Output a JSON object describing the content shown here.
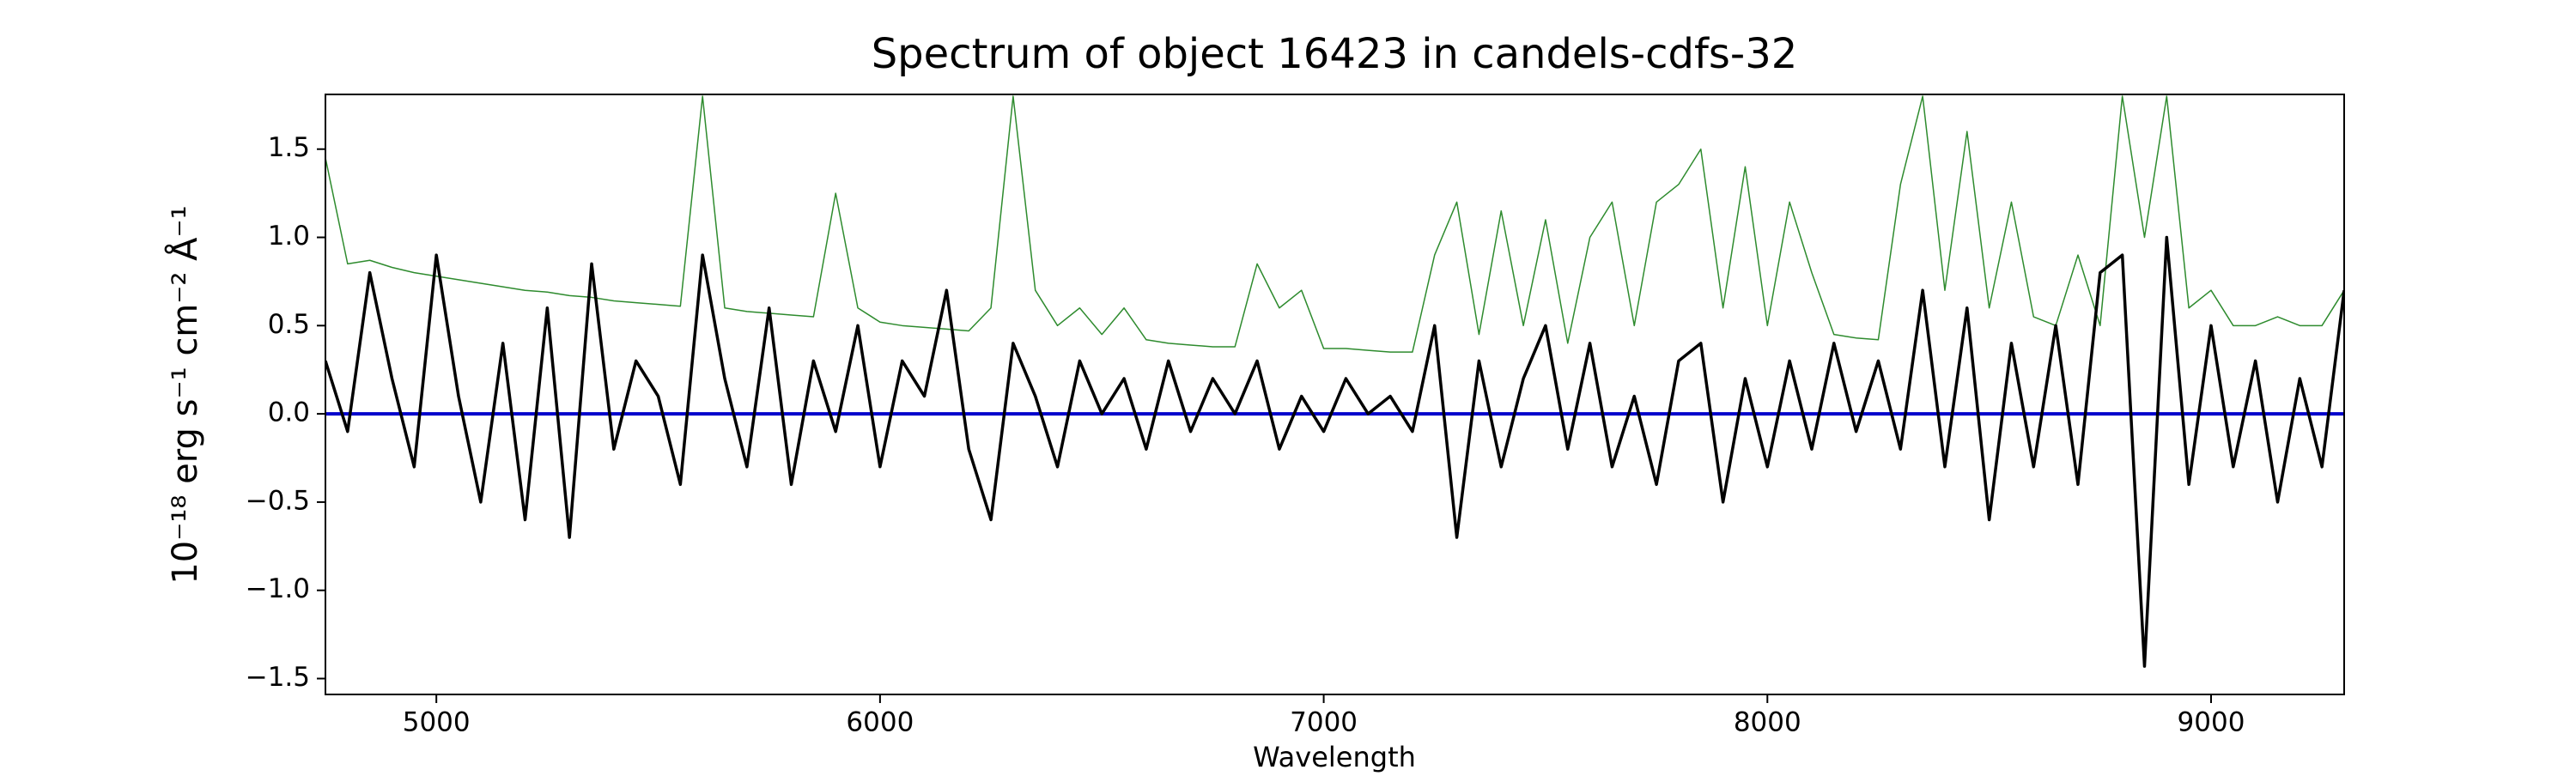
{
  "chart_data": {
    "type": "line",
    "title": "Spectrum of object 16423 in candels-cdfs-32",
    "x_label": "Wavelength",
    "y_label": "10⁻¹⁸ erg s⁻¹ cm⁻² Å⁻¹",
    "x": [
      4750,
      4800,
      4850,
      4900,
      4950,
      5000,
      5050,
      5100,
      5150,
      5200,
      5250,
      5300,
      5350,
      5400,
      5450,
      5500,
      5550,
      5600,
      5650,
      5700,
      5750,
      5800,
      5850,
      5900,
      5950,
      6000,
      6050,
      6100,
      6150,
      6200,
      6250,
      6300,
      6350,
      6400,
      6450,
      6500,
      6550,
      6600,
      6650,
      6700,
      6750,
      6800,
      6850,
      6900,
      6950,
      7000,
      7050,
      7100,
      7150,
      7200,
      7250,
      7300,
      7350,
      7400,
      7450,
      7500,
      7550,
      7600,
      7650,
      7700,
      7750,
      7800,
      7850,
      7900,
      7950,
      8000,
      8050,
      8100,
      8150,
      8200,
      8250,
      8300,
      8350,
      8400,
      8450,
      8500,
      8550,
      8600,
      8650,
      8700,
      8750,
      8800,
      8850,
      8900,
      8950,
      9000,
      9050,
      9100,
      9150,
      9200,
      9250,
      9300
    ],
    "series": [
      {
        "color": "#2e8b2e",
        "values": [
          1.45,
          0.85,
          0.87,
          0.83,
          0.8,
          0.78,
          0.76,
          0.74,
          0.72,
          0.7,
          0.69,
          0.67,
          0.66,
          0.64,
          0.63,
          0.62,
          0.61,
          1.8,
          0.6,
          0.58,
          0.57,
          0.56,
          0.55,
          1.25,
          0.6,
          0.52,
          0.5,
          0.49,
          0.48,
          0.47,
          0.6,
          1.8,
          0.7,
          0.5,
          0.6,
          0.45,
          0.6,
          0.42,
          0.4,
          0.39,
          0.38,
          0.38,
          0.85,
          0.6,
          0.7,
          0.37,
          0.37,
          0.36,
          0.35,
          0.35,
          0.9,
          1.2,
          0.45,
          1.15,
          0.5,
          1.1,
          0.4,
          1.0,
          1.2,
          0.5,
          1.2,
          1.3,
          1.5,
          0.6,
          1.4,
          0.5,
          1.2,
          0.8,
          0.45,
          0.43,
          0.42,
          1.3,
          1.8,
          0.7,
          1.6,
          0.6,
          1.2,
          0.55,
          0.5,
          0.9,
          0.5,
          1.8,
          1.0,
          1.8,
          0.6,
          0.7,
          0.5,
          0.5,
          0.55,
          0.5,
          0.5,
          0.7
        ]
      },
      {
        "color": "#0000cc",
        "x": [
          4750,
          9300
        ],
        "values": [
          0,
          0
        ]
      },
      {
        "color": "#000000",
        "values": [
          0.3,
          -0.1,
          0.8,
          0.2,
          -0.3,
          0.9,
          0.1,
          -0.5,
          0.4,
          -0.6,
          0.6,
          -0.7,
          0.85,
          -0.2,
          0.3,
          0.1,
          -0.4,
          0.9,
          0.2,
          -0.3,
          0.6,
          -0.4,
          0.3,
          -0.1,
          0.5,
          -0.3,
          0.3,
          0.1,
          0.7,
          -0.2,
          -0.6,
          0.4,
          0.1,
          -0.3,
          0.3,
          0.0,
          0.2,
          -0.2,
          0.3,
          -0.1,
          0.2,
          0.0,
          0.3,
          -0.2,
          0.1,
          -0.1,
          0.2,
          0.0,
          0.1,
          -0.1,
          0.5,
          -0.7,
          0.3,
          -0.3,
          0.2,
          0.5,
          -0.2,
          0.4,
          -0.3,
          0.1,
          -0.4,
          0.3,
          0.4,
          -0.5,
          0.2,
          -0.3,
          0.3,
          -0.2,
          0.4,
          -0.1,
          0.3,
          -0.2,
          0.7,
          -0.3,
          0.6,
          -0.6,
          0.4,
          -0.3,
          0.5,
          -0.4,
          0.8,
          0.9,
          -1.43,
          1.0,
          -0.4,
          0.5,
          -0.3,
          0.3,
          -0.5,
          0.2,
          -0.3,
          0.7
        ]
      }
    ],
    "xlim": [
      4750,
      9300
    ],
    "ylim": [
      -1.59,
      1.81
    ],
    "xticks": [
      5000,
      6000,
      7000,
      8000,
      9000
    ],
    "yticks": [
      {
        "value": -1.5,
        "label": "−1.5"
      },
      {
        "value": -1.0,
        "label": "−1.0"
      },
      {
        "value": -0.5,
        "label": "−0.5"
      },
      {
        "value": 0,
        "label": "0.0"
      },
      0.5,
      {
        "value": 1.0,
        "label": "1.0"
      },
      1.5
    ]
  }
}
